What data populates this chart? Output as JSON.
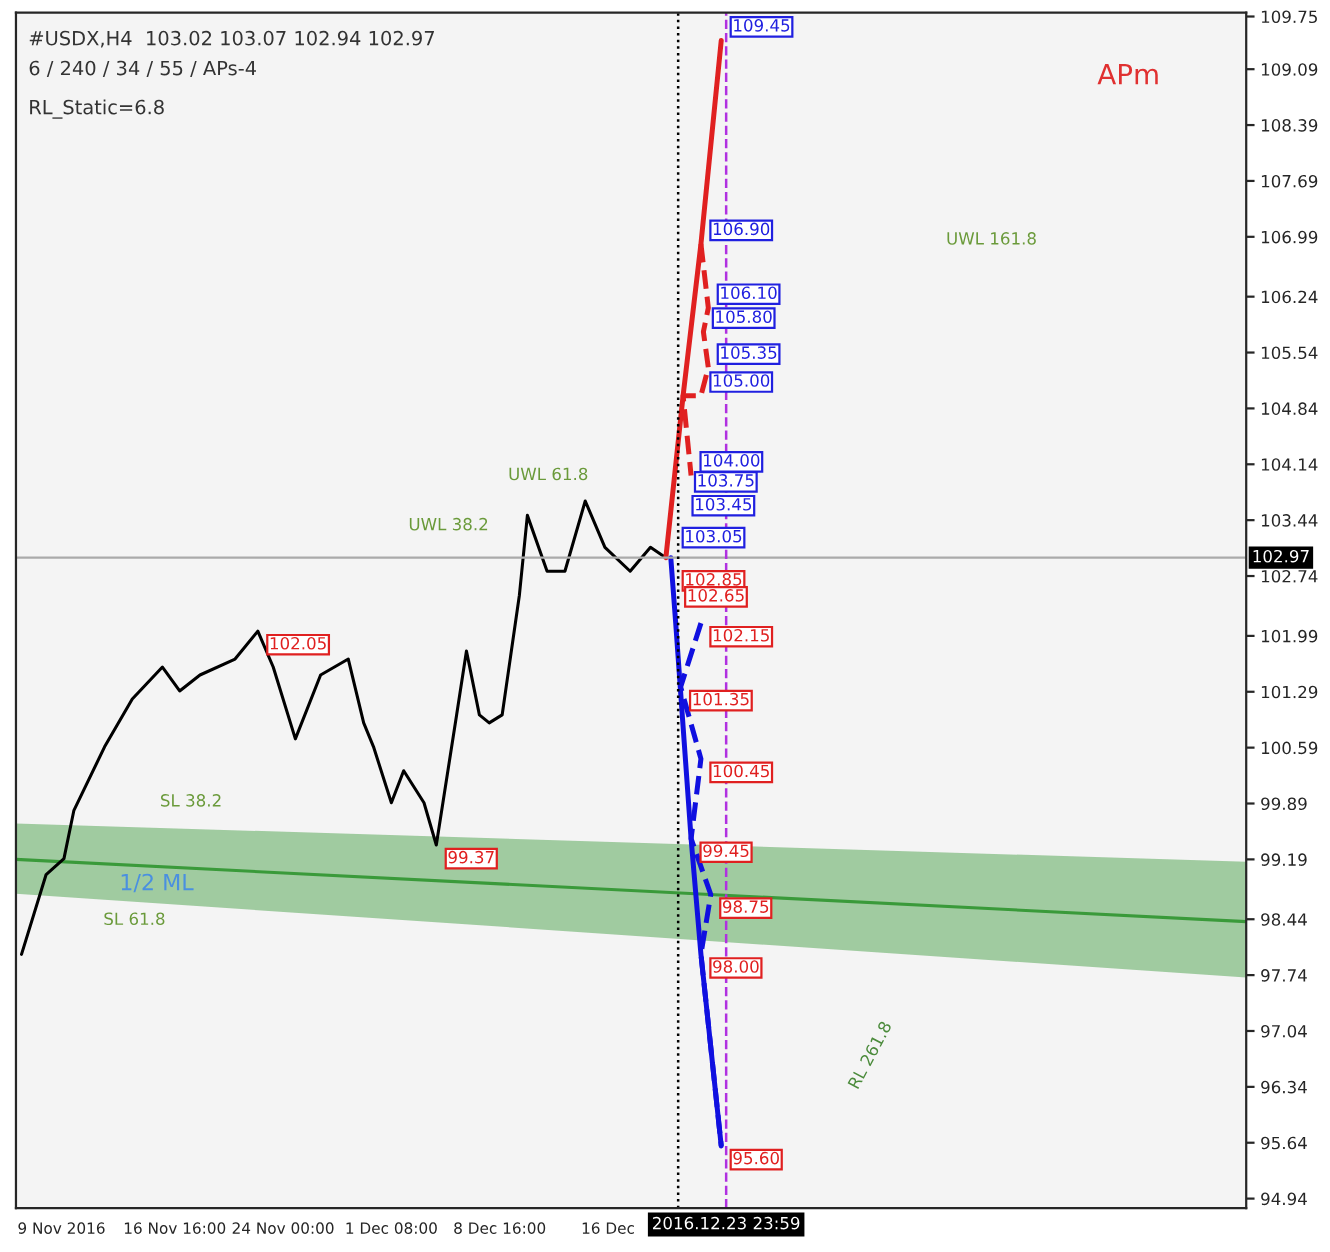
{
  "chart_data": {
    "type": "line",
    "title": "#USDX,H4  103.02 103.07 102.94 102.97",
    "subtitle": "6 / 240 / 34 / 55 / APs-4",
    "xticks": [
      {
        "value": "2016-11-09T00:00",
        "label": "9 Nov 2016"
      },
      {
        "value": "2016-11-16T16:00",
        "label": "16 Nov 16:00"
      },
      {
        "value": "2016-11-24T00:00",
        "label": "24 Nov 00:00"
      },
      {
        "value": "2016-12-01T08:00",
        "label": "1 Dec 08:00"
      },
      {
        "value": "2016-12-08T16:00",
        "label": "8 Dec 16:00"
      },
      {
        "value": "2016-12-16T00:00",
        "label": "16 Dec"
      }
    ],
    "xlim": [
      "2016-11-05T22:00",
      "2017-01-28T05:00"
    ],
    "ylim": [
      94.82,
      109.8
    ],
    "yticks": [
      94.94,
      95.64,
      96.34,
      97.04,
      97.74,
      98.44,
      99.19,
      99.89,
      100.59,
      101.29,
      101.99,
      102.74,
      103.44,
      104.14,
      104.84,
      105.54,
      106.24,
      106.99,
      107.69,
      108.39,
      109.09,
      109.75
    ],
    "grid": false,
    "legend": false,
    "marker": "none",
    "series": [
      {
        "color": "#3a9a3a",
        "x": [
          "2016-11-05T22:00",
          "2017-01-28T05:00"
        ],
        "values": [
          99.19,
          98.41
        ],
        "lower": [
          98.76,
          97.71
        ],
        "upper": [
          99.64,
          99.16
        ]
      },
      {
        "color": "#000000",
        "x": [
          "2016-11-06T07:00",
          "2016-11-07T23:00",
          "2016-11-09T04:00",
          "2016-11-09T20:00",
          "2016-11-11T22:00",
          "2016-11-13T19:00",
          "2016-11-15T20:00",
          "2016-11-17T00:00",
          "2016-11-18T09:00",
          "2016-11-20T18:00",
          "2016-11-22T07:00",
          "2016-11-23T08:00",
          "2016-11-24T20:00",
          "2016-11-26T13:00",
          "2016-11-28T10:00",
          "2016-11-29T11:00",
          "2016-11-30T03:00",
          "2016-12-01T08:00",
          "2016-12-02T04:00",
          "2016-12-03T13:00",
          "2016-12-04T09:00",
          "2016-12-05T18:00",
          "2016-12-06T10:00",
          "2016-12-07T07:00",
          "2016-12-07T23:00",
          "2016-12-08T20:00",
          "2016-12-10T00:00",
          "2016-12-10T13:00",
          "2016-12-11T21:00",
          "2016-12-13T02:00",
          "2016-12-14T11:00",
          "2016-12-15T19:00",
          "2016-12-17T12:00",
          "2016-12-18T21:00",
          "2016-12-19T22:00"
        ],
        "values": [
          98.0,
          99.0,
          99.2,
          99.8,
          100.6,
          101.2,
          101.6,
          101.3,
          101.5,
          101.7,
          102.05,
          101.6,
          100.7,
          101.5,
          101.7,
          100.9,
          100.6,
          99.9,
          100.3,
          99.9,
          99.37,
          101.0,
          101.8,
          101.0,
          100.9,
          101.0,
          102.5,
          103.5,
          102.8,
          102.8,
          103.68,
          103.1,
          102.8,
          103.1,
          102.97
        ]
      },
      {
        "color": "#e02020",
        "line_style": "solid",
        "x": [
          "2016-12-19T22:00",
          "2016-12-21T02:00",
          "2016-12-22T07:00",
          "2016-12-23T16:00"
        ],
        "values": [
          102.97,
          105.0,
          106.9,
          109.45
        ]
      },
      {
        "color": "#e02020",
        "line_style": "dashed",
        "x": [
          "2016-12-22T07:00",
          "2016-12-22T19:00",
          "2016-12-22T11:00",
          "2016-12-22T19:00",
          "2016-12-22T07:00",
          "2016-12-21T02:00",
          "2016-12-21T15:00"
        ],
        "values": [
          106.9,
          106.1,
          105.8,
          105.35,
          105.0,
          105.0,
          104.0
        ]
      },
      {
        "color": "#1010e0",
        "line_style": "solid",
        "x": [
          "2016-12-20T06:00",
          "2016-12-20T14:00",
          "2016-12-21T15:00",
          "2016-12-22T07:00",
          "2016-12-23T16:00"
        ],
        "values": [
          102.97,
          102.15,
          99.45,
          98.0,
          95.6
        ]
      },
      {
        "color": "#1010e0",
        "line_style": "dashed",
        "x": [
          "2016-12-22T07:00",
          "2016-12-20T22:00",
          "2016-12-22T07:00",
          "2016-12-21T15:00",
          "2016-12-22T23:00",
          "2016-12-22T07:00",
          "2016-12-23T16:00"
        ],
        "values": [
          102.15,
          101.35,
          100.45,
          99.45,
          98.75,
          98.0,
          95.6
        ]
      }
    ],
    "ref_lines": [
      {
        "axis": "y",
        "value": 102.97,
        "label": "102.97",
        "color": "#aaaaaa"
      },
      {
        "axis": "x",
        "value": "2016-12-20T18:00",
        "color": "#000000",
        "line_style": "dotted"
      },
      {
        "axis": "x",
        "value": "2016-12-23T23:59",
        "label": "2016.12.23 23:59",
        "color": "#b030e0",
        "line_style": "dashed"
      }
    ],
    "annotations": [
      "RL_Static=6.8",
      "APm",
      "1/2 ML",
      "UWL 61.8",
      "UWL 38.2",
      "UWL 161.8",
      "SL 38.2",
      "SL 61.8",
      "RL 261.8",
      {
        "text": "109.45",
        "x": "2016-12-23T16:00",
        "y": 109.45
      },
      {
        "text": "106.90",
        "x": "2016-12-22T07:00",
        "y": 106.9
      },
      {
        "text": "106.10",
        "x": "2016-12-22T19:00",
        "y": 106.1
      },
      {
        "text": "105.80",
        "x": "2016-12-22T11:00",
        "y": 105.8
      },
      {
        "text": "105.35",
        "x": "2016-12-22T19:00",
        "y": 105.35
      },
      {
        "text": "105.00",
        "x": "2016-12-22T07:00",
        "y": 105.0
      },
      {
        "text": "104.00",
        "x": "2016-12-21T15:00",
        "y": 104.0
      },
      {
        "text": "103.75",
        "x": "2016-12-21T06:00",
        "y": 103.75
      },
      {
        "text": "103.45",
        "x": "2016-12-21T02:00",
        "y": 103.45
      },
      {
        "text": "103.05",
        "x": "2016-12-20T10:00",
        "y": 103.05
      },
      {
        "text": "102.85",
        "x": "2016-12-20T10:00",
        "y": 102.85
      },
      {
        "text": "102.65",
        "x": "2016-12-20T14:00",
        "y": 102.65
      },
      {
        "text": "102.15",
        "x": "2016-12-22T07:00",
        "y": 102.15
      },
      {
        "text": "101.35",
        "x": "2016-12-20T22:00",
        "y": 101.35
      },
      {
        "text": "100.45",
        "x": "2016-12-22T07:00",
        "y": 100.45
      },
      {
        "text": "99.45",
        "x": "2016-12-21T15:00",
        "y": 99.45
      },
      {
        "text": "98.75",
        "x": "2016-12-22T23:00",
        "y": 98.75
      },
      {
        "text": "98.00",
        "x": "2016-12-22T07:00",
        "y": 98.0
      },
      {
        "text": "95.60",
        "x": "2016-12-23T16:00",
        "y": 95.6
      },
      {
        "text": "102.05",
        "x": "2016-11-22T07:00",
        "y": 102.05
      },
      {
        "text": "99.37",
        "x": "2016-12-04T09:00",
        "y": 99.37
      }
    ]
  }
}
